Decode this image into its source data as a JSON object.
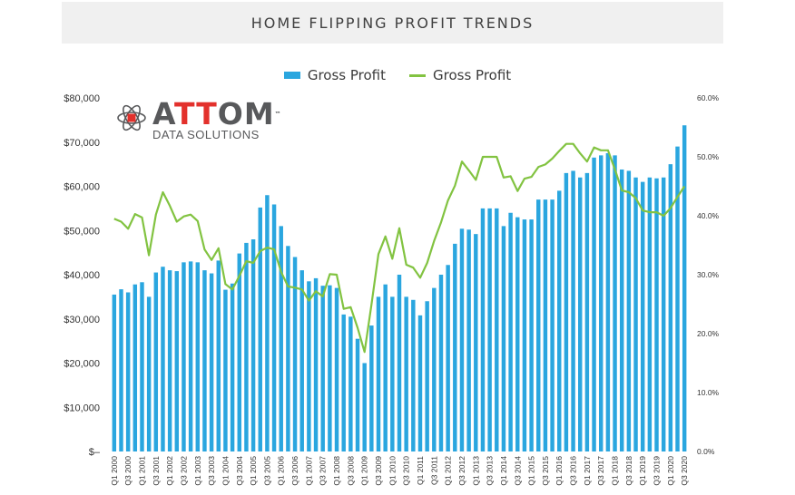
{
  "title": "HOME FLIPPING PROFIT TRENDS",
  "logo": {
    "name_pre": "A",
    "name_accent": "TT",
    "name_post": "OM",
    "trademark": "™",
    "tagline": "DATA SOLUTIONS"
  },
  "legend": [
    {
      "label": "Gross Profit",
      "kind": "bar",
      "color": "#2aa6df"
    },
    {
      "label": "Gross Profit",
      "kind": "line",
      "color": "#82c341"
    }
  ],
  "chart_data": {
    "type": "bar",
    "title": "HOME FLIPPING PROFIT TRENDS",
    "categories": [
      "Q1 2000",
      "Q2 2000",
      "Q3 2000",
      "Q4 2000",
      "Q1 2001",
      "Q2 2001",
      "Q3 2001",
      "Q4 2001",
      "Q1 2002",
      "Q2 2002",
      "Q3 2002",
      "Q4 2002",
      "Q1 2003",
      "Q2 2003",
      "Q3 2003",
      "Q4 2003",
      "Q1 2004",
      "Q2 2004",
      "Q3 2004",
      "Q4 2004",
      "Q1 2005",
      "Q2 2005",
      "Q3 2005",
      "Q4 2005",
      "Q1 2006",
      "Q2 2006",
      "Q3 2006",
      "Q4 2006",
      "Q1 2007",
      "Q2 2007",
      "Q3 2007",
      "Q4 2007",
      "Q1 2008",
      "Q2 2008",
      "Q3 2008",
      "Q4 2008",
      "Q1 2009",
      "Q2 2009",
      "Q3 2009",
      "Q4 2009",
      "Q1 2010",
      "Q2 2010",
      "Q3 2010",
      "Q4 2010",
      "Q1 2011",
      "Q2 2011",
      "Q3 2011",
      "Q4 2011",
      "Q1 2012",
      "Q2 2012",
      "Q3 2012",
      "Q4 2012",
      "Q1 2013",
      "Q2 2013",
      "Q3 2013",
      "Q4 2013",
      "Q1 2014",
      "Q2 2014",
      "Q3 2014",
      "Q4 2014",
      "Q1 2015",
      "Q2 2015",
      "Q3 2015",
      "Q4 2015",
      "Q1 2016",
      "Q2 2016",
      "Q3 2016",
      "Q4 2016",
      "Q1 2017",
      "Q2 2017",
      "Q3 2017",
      "Q4 2017",
      "Q1 2018",
      "Q2 2018",
      "Q3 2018",
      "Q4 2018",
      "Q1 2019",
      "Q2 2019",
      "Q3 2019",
      "Q4 2019",
      "Q1 2020",
      "Q2 2020",
      "Q3 2020"
    ],
    "tick_labels": [
      "Q1 2000",
      "Q3 2000",
      "Q1 2001",
      "Q3 2001",
      "Q1 2002",
      "Q3 2002",
      "Q1 2003",
      "Q3 2003",
      "Q1 2004",
      "Q3 2004",
      "Q1 2005",
      "Q3 2005",
      "Q1 2006",
      "Q3 2006",
      "Q1 2007",
      "Q3 2007",
      "Q1 2008",
      "Q3 2008",
      "Q1 2009",
      "Q3 2009",
      "Q1 2010",
      "Q3 2010",
      "Q1 2011",
      "Q3 2011",
      "Q1 2012",
      "Q3 2012",
      "Q1 2013",
      "Q3 2013",
      "Q1 2014",
      "Q3 2014",
      "Q1 2015",
      "Q3 2015",
      "Q1 2016",
      "Q3 2016",
      "Q1 2017",
      "Q3 2017",
      "Q1 2018",
      "Q3 2018",
      "Q1 2019",
      "Q3 2019",
      "Q1 2020",
      "Q3 2020"
    ],
    "series": [
      {
        "name": "Gross Profit",
        "type": "bar",
        "axis": "left",
        "color": "#2aa6df",
        "values": [
          35500,
          36700,
          36000,
          37800,
          38300,
          35000,
          40500,
          41800,
          41000,
          40800,
          42800,
          43000,
          42800,
          41000,
          40300,
          43200,
          36600,
          38000,
          44800,
          47200,
          48000,
          55200,
          58000,
          55900,
          51000,
          46500,
          44000,
          41000,
          38500,
          39200,
          37500,
          37600,
          37000,
          31000,
          30500,
          25500,
          20000,
          28500,
          35000,
          37800,
          35000,
          40000,
          35000,
          34300,
          30800,
          34000,
          37000,
          40000,
          42200,
          47000,
          50400,
          50200,
          49200,
          55000,
          55000,
          55000,
          51000,
          54000,
          53000,
          52500,
          52500,
          57000,
          57000,
          57000,
          59000,
          63000,
          63500,
          62000,
          63000,
          66500,
          67000,
          67500,
          67000,
          63800,
          63500,
          62000,
          61000,
          62000,
          61800,
          62000,
          65000,
          69000,
          73800
        ]
      },
      {
        "name": "Gross Profit",
        "type": "line",
        "axis": "right",
        "color": "#82c341",
        "values": [
          39.5,
          39.0,
          37.8,
          40.3,
          39.7,
          33.3,
          40.2,
          44.0,
          41.7,
          39.0,
          39.9,
          40.2,
          39.1,
          34.3,
          32.5,
          34.5,
          28.4,
          27.5,
          29.8,
          32.3,
          32.0,
          34.0,
          34.6,
          34.3,
          30.5,
          28.0,
          27.8,
          27.5,
          25.6,
          27.2,
          26.3,
          30.1,
          30.0,
          24.2,
          24.5,
          21.0,
          16.9,
          24.9,
          33.5,
          36.5,
          32.7,
          37.9,
          31.7,
          31.2,
          29.5,
          32.0,
          35.7,
          38.9,
          42.6,
          45.1,
          49.2,
          47.7,
          46.1,
          50.0,
          50.0,
          50.0,
          46.5,
          46.7,
          44.2,
          46.3,
          46.6,
          48.3,
          48.7,
          49.7,
          51.0,
          52.2,
          52.2,
          50.6,
          49.2,
          51.6,
          51.1,
          51.1,
          47.9,
          44.3,
          44.0,
          43.0,
          40.9,
          40.6,
          40.6,
          40.0,
          41.3,
          43.2,
          45.0
        ]
      }
    ],
    "y_left": {
      "min": 0,
      "max": 80000,
      "ticks": [
        "$–",
        "$10,000",
        "$20,000",
        "$30,000",
        "$40,000",
        "$50,000",
        "$60,000",
        "$70,000",
        "$80,000"
      ]
    },
    "y_right": {
      "min": 0,
      "max": 60,
      "ticks": [
        "0.0%",
        "10.0%",
        "20.0%",
        "30.0%",
        "40.0%",
        "50.0%",
        "60.0%"
      ]
    },
    "grid": false,
    "legend_position": "top-center"
  }
}
